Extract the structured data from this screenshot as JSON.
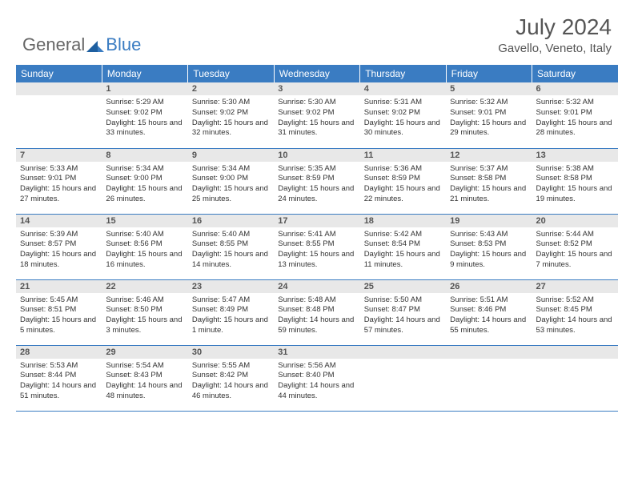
{
  "logo": {
    "part1": "General",
    "part2": "Blue"
  },
  "title": "July 2024",
  "location": "Gavello, Veneto, Italy",
  "colors": {
    "header_bg": "#3a7cc2",
    "header_text": "#ffffff",
    "daynum_bg": "#e8e8e8",
    "border": "#3a7cc2",
    "text": "#333333",
    "logo_gray": "#666666",
    "logo_blue": "#3a7cc2"
  },
  "weekdays": [
    "Sunday",
    "Monday",
    "Tuesday",
    "Wednesday",
    "Thursday",
    "Friday",
    "Saturday"
  ],
  "grid": [
    [
      {
        "n": "",
        "sr": "",
        "ss": "",
        "dl": ""
      },
      {
        "n": "1",
        "sr": "5:29 AM",
        "ss": "9:02 PM",
        "dl": "15 hours and 33 minutes."
      },
      {
        "n": "2",
        "sr": "5:30 AM",
        "ss": "9:02 PM",
        "dl": "15 hours and 32 minutes."
      },
      {
        "n": "3",
        "sr": "5:30 AM",
        "ss": "9:02 PM",
        "dl": "15 hours and 31 minutes."
      },
      {
        "n": "4",
        "sr": "5:31 AM",
        "ss": "9:02 PM",
        "dl": "15 hours and 30 minutes."
      },
      {
        "n": "5",
        "sr": "5:32 AM",
        "ss": "9:01 PM",
        "dl": "15 hours and 29 minutes."
      },
      {
        "n": "6",
        "sr": "5:32 AM",
        "ss": "9:01 PM",
        "dl": "15 hours and 28 minutes."
      }
    ],
    [
      {
        "n": "7",
        "sr": "5:33 AM",
        "ss": "9:01 PM",
        "dl": "15 hours and 27 minutes."
      },
      {
        "n": "8",
        "sr": "5:34 AM",
        "ss": "9:00 PM",
        "dl": "15 hours and 26 minutes."
      },
      {
        "n": "9",
        "sr": "5:34 AM",
        "ss": "9:00 PM",
        "dl": "15 hours and 25 minutes."
      },
      {
        "n": "10",
        "sr": "5:35 AM",
        "ss": "8:59 PM",
        "dl": "15 hours and 24 minutes."
      },
      {
        "n": "11",
        "sr": "5:36 AM",
        "ss": "8:59 PM",
        "dl": "15 hours and 22 minutes."
      },
      {
        "n": "12",
        "sr": "5:37 AM",
        "ss": "8:58 PM",
        "dl": "15 hours and 21 minutes."
      },
      {
        "n": "13",
        "sr": "5:38 AM",
        "ss": "8:58 PM",
        "dl": "15 hours and 19 minutes."
      }
    ],
    [
      {
        "n": "14",
        "sr": "5:39 AM",
        "ss": "8:57 PM",
        "dl": "15 hours and 18 minutes."
      },
      {
        "n": "15",
        "sr": "5:40 AM",
        "ss": "8:56 PM",
        "dl": "15 hours and 16 minutes."
      },
      {
        "n": "16",
        "sr": "5:40 AM",
        "ss": "8:55 PM",
        "dl": "15 hours and 14 minutes."
      },
      {
        "n": "17",
        "sr": "5:41 AM",
        "ss": "8:55 PM",
        "dl": "15 hours and 13 minutes."
      },
      {
        "n": "18",
        "sr": "5:42 AM",
        "ss": "8:54 PM",
        "dl": "15 hours and 11 minutes."
      },
      {
        "n": "19",
        "sr": "5:43 AM",
        "ss": "8:53 PM",
        "dl": "15 hours and 9 minutes."
      },
      {
        "n": "20",
        "sr": "5:44 AM",
        "ss": "8:52 PM",
        "dl": "15 hours and 7 minutes."
      }
    ],
    [
      {
        "n": "21",
        "sr": "5:45 AM",
        "ss": "8:51 PM",
        "dl": "15 hours and 5 minutes."
      },
      {
        "n": "22",
        "sr": "5:46 AM",
        "ss": "8:50 PM",
        "dl": "15 hours and 3 minutes."
      },
      {
        "n": "23",
        "sr": "5:47 AM",
        "ss": "8:49 PM",
        "dl": "15 hours and 1 minute."
      },
      {
        "n": "24",
        "sr": "5:48 AM",
        "ss": "8:48 PM",
        "dl": "14 hours and 59 minutes."
      },
      {
        "n": "25",
        "sr": "5:50 AM",
        "ss": "8:47 PM",
        "dl": "14 hours and 57 minutes."
      },
      {
        "n": "26",
        "sr": "5:51 AM",
        "ss": "8:46 PM",
        "dl": "14 hours and 55 minutes."
      },
      {
        "n": "27",
        "sr": "5:52 AM",
        "ss": "8:45 PM",
        "dl": "14 hours and 53 minutes."
      }
    ],
    [
      {
        "n": "28",
        "sr": "5:53 AM",
        "ss": "8:44 PM",
        "dl": "14 hours and 51 minutes."
      },
      {
        "n": "29",
        "sr": "5:54 AM",
        "ss": "8:43 PM",
        "dl": "14 hours and 48 minutes."
      },
      {
        "n": "30",
        "sr": "5:55 AM",
        "ss": "8:42 PM",
        "dl": "14 hours and 46 minutes."
      },
      {
        "n": "31",
        "sr": "5:56 AM",
        "ss": "8:40 PM",
        "dl": "14 hours and 44 minutes."
      },
      {
        "n": "",
        "sr": "",
        "ss": "",
        "dl": ""
      },
      {
        "n": "",
        "sr": "",
        "ss": "",
        "dl": ""
      },
      {
        "n": "",
        "sr": "",
        "ss": "",
        "dl": ""
      }
    ]
  ],
  "labels": {
    "sunrise": "Sunrise:",
    "sunset": "Sunset:",
    "daylight": "Daylight:"
  }
}
